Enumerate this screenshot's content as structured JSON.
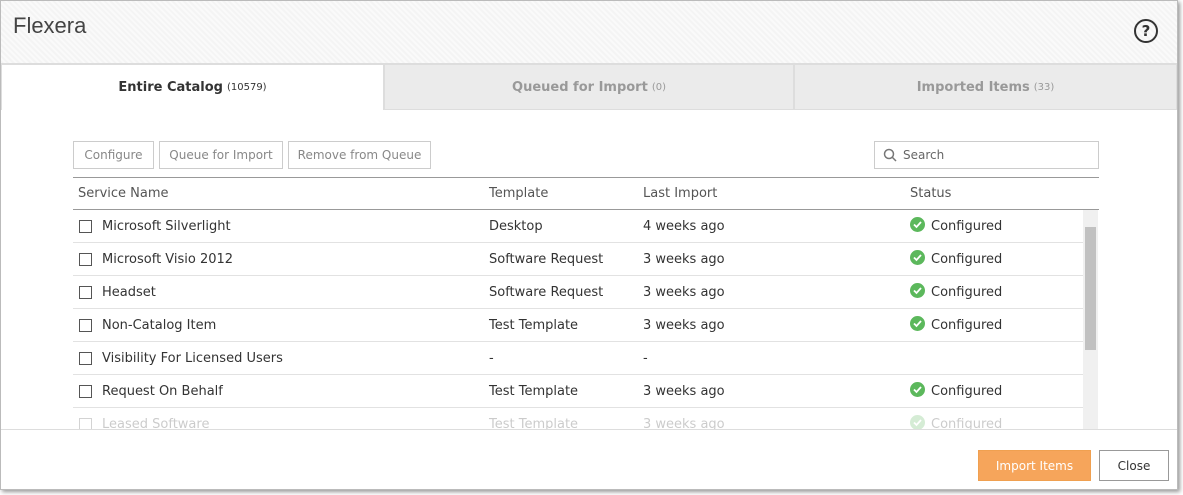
{
  "header": {
    "title": "Flexera"
  },
  "tabs": [
    {
      "label": "Entire Catalog",
      "count": "(10579)"
    },
    {
      "label": "Queued for Import",
      "count": "(0)"
    },
    {
      "label": "Imported Items",
      "count": "(33)"
    }
  ],
  "toolbar": {
    "buttons": [
      "Configure",
      "Queue for Import",
      "Remove from Queue"
    ],
    "search_placeholder": "Search"
  },
  "table": {
    "columns": [
      "Service Name",
      "Template",
      "Last Import",
      "Status"
    ],
    "rows": [
      {
        "name": "Microsoft Silverlight",
        "template": "Desktop",
        "last_import": "4 weeks ago",
        "status": "Configured"
      },
      {
        "name": "Microsoft Visio 2012",
        "template": "Software Request",
        "last_import": "3 weeks ago",
        "status": "Configured"
      },
      {
        "name": "Headset",
        "template": "Software Request",
        "last_import": "3 weeks ago",
        "status": "Configured"
      },
      {
        "name": "Non-Catalog Item",
        "template": "Test Template",
        "last_import": "3 weeks ago",
        "status": "Configured"
      },
      {
        "name": "Visibility For Licensed Users",
        "template": "-",
        "last_import": "-"
      },
      {
        "name": "Request On Behalf",
        "template": "Test Template",
        "last_import": "3 weeks ago",
        "status": "Configured"
      },
      {
        "name": "Leased Software",
        "template": "Test Template",
        "last_import": "3 weeks ago",
        "status": "Configured"
      }
    ]
  },
  "footer": {
    "buttons": [
      "Import Items",
      "Close"
    ]
  }
}
